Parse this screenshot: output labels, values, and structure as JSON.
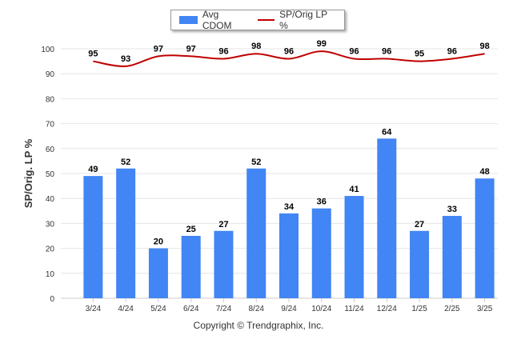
{
  "chart_data": {
    "type": "bar",
    "categories": [
      "3/24",
      "4/24",
      "5/24",
      "6/24",
      "7/24",
      "8/24",
      "9/24",
      "10/24",
      "11/24",
      "12/24",
      "1/25",
      "2/25",
      "3/25"
    ],
    "series": [
      {
        "name": "Avg CDOM",
        "type": "bar",
        "values": [
          49,
          52,
          20,
          25,
          27,
          52,
          34,
          36,
          41,
          64,
          27,
          33,
          48
        ],
        "color": "#4285f4"
      },
      {
        "name": "SP/Orig LP %",
        "type": "line",
        "values": [
          95,
          93,
          97,
          97,
          96,
          98,
          96,
          99,
          96,
          96,
          95,
          96,
          98
        ],
        "color": "#c00000"
      }
    ],
    "ylabel": "SP/Orig. LP %",
    "ylim": [
      0,
      100
    ],
    "yticks": [
      0,
      10,
      20,
      30,
      40,
      50,
      60,
      70,
      80,
      90,
      100
    ],
    "grid": true,
    "legend_position": "top-center"
  },
  "footer": {
    "copyright": "Copyright © Trendgraphix, Inc."
  }
}
